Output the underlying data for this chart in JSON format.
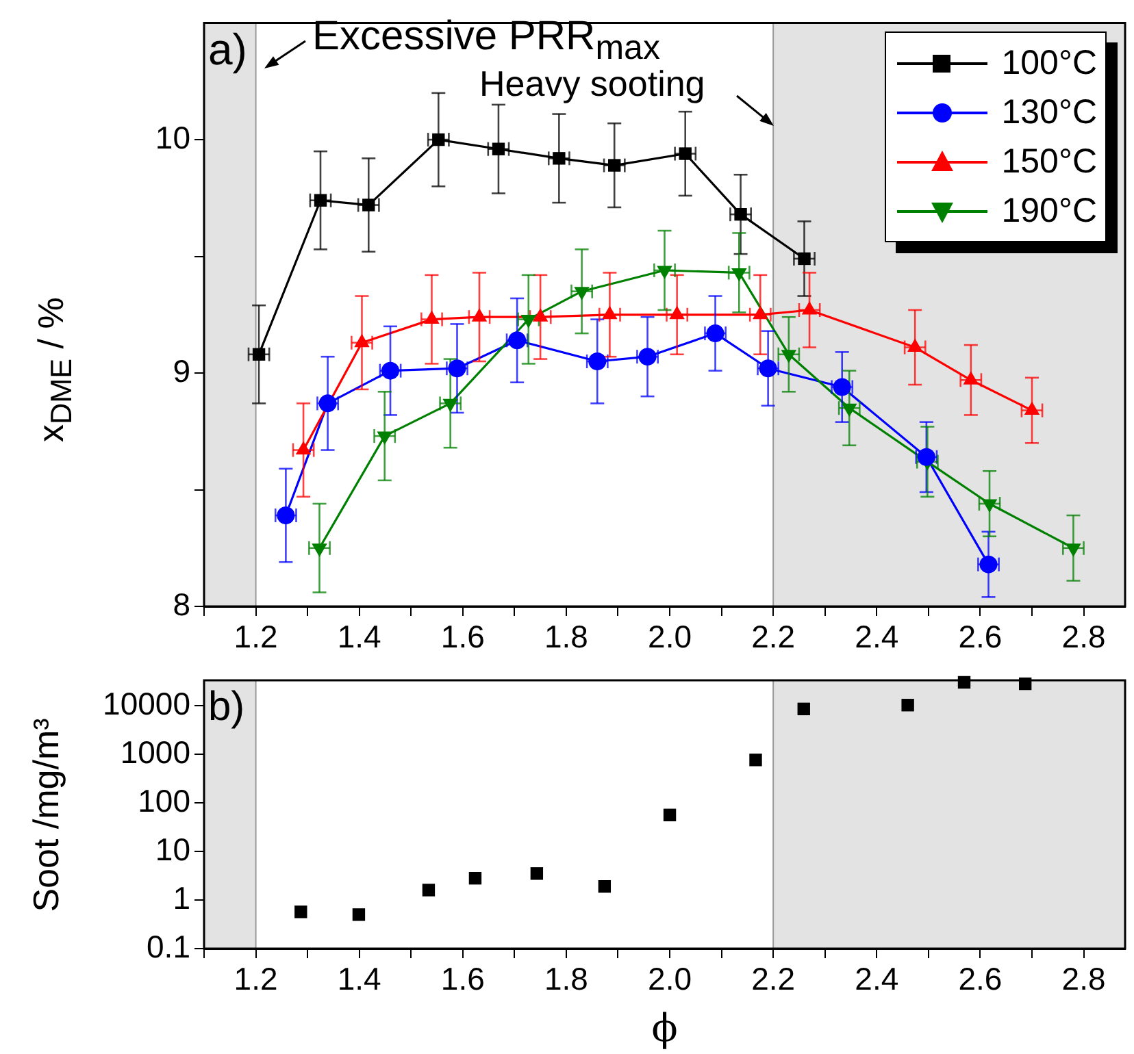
{
  "chart_data": [
    {
      "type": "line",
      "ylabel": "x$_{DME}$ / %",
      "annotations": [
        "a)",
        "Excessive PRR$_{max}$",
        "Heavy sooting"
      ],
      "xlim": [
        1.1,
        2.88
      ],
      "xticks": [
        {
          "value": 1.1,
          "label": null
        },
        {
          "value": 1.2,
          "label": "1.2"
        },
        {
          "value": 1.3,
          "label": null
        },
        {
          "value": 1.4,
          "label": "1.4"
        },
        {
          "value": 1.5,
          "label": null
        },
        {
          "value": 1.6,
          "label": "1.6"
        },
        {
          "value": 1.7,
          "label": null
        },
        {
          "value": 1.8,
          "label": "1.8"
        },
        {
          "value": 1.9,
          "label": null
        },
        {
          "value": 2.0,
          "label": "2.0"
        },
        {
          "value": 2.1,
          "label": null
        },
        {
          "value": 2.2,
          "label": "2.2"
        },
        {
          "value": 2.3,
          "label": null
        },
        {
          "value": 2.4,
          "label": "2.4"
        },
        {
          "value": 2.5,
          "label": null
        },
        {
          "value": 2.6,
          "label": "2.6"
        },
        {
          "value": 2.7,
          "label": null
        },
        {
          "value": 2.8,
          "label": "2.8"
        }
      ],
      "ylim": [
        8,
        10.5
      ],
      "yticks": [
        8,
        {
          "value": 8.5,
          "label": null
        },
        9,
        {
          "value": 9.5,
          "label": null
        },
        10
      ],
      "bands": [
        {
          "axis": "x",
          "from": 1.1,
          "to": 1.2,
          "color": "#e3e3e3"
        },
        {
          "axis": "x",
          "from": 2.2,
          "to": 2.88,
          "color": "#e3e3e3"
        }
      ],
      "legend": "top right",
      "line_style": "solid",
      "series": [
        {
          "name": "100°C",
          "color": "#000000",
          "marker": "square",
          "x": [
            1.206,
            1.325,
            1.418,
            1.553,
            1.669,
            1.786,
            1.893,
            2.03,
            2.137,
            2.26
          ],
          "values": [
            9.08,
            9.74,
            9.72,
            10.0,
            9.96,
            9.92,
            9.89,
            9.94,
            9.68,
            9.49
          ],
          "errors": [
            0.21,
            0.21,
            0.2,
            0.2,
            0.19,
            0.19,
            0.18,
            0.18,
            0.17,
            0.16
          ],
          "xerrors": [
            0.02,
            0.02,
            0.02,
            0.02,
            0.02,
            0.02,
            0.02,
            0.02,
            0.02,
            0.02
          ]
        },
        {
          "name": "130°C",
          "color": "#0000ff",
          "marker": "circle",
          "x": [
            1.258,
            1.339,
            1.46,
            1.589,
            1.705,
            1.86,
            1.957,
            2.088,
            2.19,
            2.333,
            2.496,
            2.616
          ],
          "values": [
            8.39,
            8.87,
            9.01,
            9.02,
            9.14,
            9.05,
            9.07,
            9.17,
            9.02,
            8.94,
            8.64,
            8.18
          ],
          "errors": [
            0.2,
            0.2,
            0.19,
            0.19,
            0.18,
            0.18,
            0.17,
            0.16,
            0.16,
            0.15,
            0.15,
            0.14
          ],
          "xerrors": [
            0.02,
            0.02,
            0.02,
            0.02,
            0.02,
            0.02,
            0.02,
            0.02,
            0.02,
            0.02,
            0.02,
            0.02
          ]
        },
        {
          "name": "150°C",
          "color": "#ff0000",
          "marker": "triangle",
          "x": [
            1.292,
            1.405,
            1.54,
            1.632,
            1.75,
            1.884,
            2.014,
            2.175,
            2.27,
            2.474,
            2.582,
            2.7
          ],
          "values": [
            8.67,
            9.13,
            9.23,
            9.24,
            9.24,
            9.25,
            9.25,
            9.25,
            9.27,
            9.11,
            8.97,
            8.84
          ],
          "errors": [
            0.2,
            0.2,
            0.19,
            0.19,
            0.18,
            0.18,
            0.17,
            0.17,
            0.16,
            0.16,
            0.15,
            0.14
          ],
          "xerrors": [
            0.02,
            0.02,
            0.02,
            0.02,
            0.02,
            0.02,
            0.02,
            0.02,
            0.02,
            0.02,
            0.02,
            0.02
          ]
        },
        {
          "name": "190°C",
          "color": "#008000",
          "marker": "triangle_down",
          "x": [
            1.323,
            1.449,
            1.576,
            1.727,
            1.83,
            1.99,
            2.134,
            2.23,
            2.347,
            2.498,
            2.618,
            2.78
          ],
          "values": [
            8.25,
            8.73,
            8.87,
            9.23,
            9.35,
            9.44,
            9.43,
            9.08,
            8.85,
            8.62,
            8.44,
            8.25
          ],
          "errors": [
            0.19,
            0.19,
            0.19,
            0.19,
            0.18,
            0.17,
            0.17,
            0.16,
            0.16,
            0.15,
            0.14,
            0.14
          ],
          "xerrors": [
            0.02,
            0.02,
            0.02,
            0.02,
            0.02,
            0.02,
            0.02,
            0.02,
            0.02,
            0.02,
            0.02,
            0.02
          ]
        }
      ]
    },
    {
      "type": "scatter",
      "xlabel": "ϕ",
      "ylabel": "Soot /mg/m³",
      "annotations": [
        "b)"
      ],
      "xlim": [
        1.1,
        2.88
      ],
      "xticks": [
        {
          "value": 1.1,
          "label": null
        },
        {
          "value": 1.2,
          "label": "1.2"
        },
        {
          "value": 1.3,
          "label": null
        },
        {
          "value": 1.4,
          "label": "1.4"
        },
        {
          "value": 1.5,
          "label": null
        },
        {
          "value": 1.6,
          "label": "1.6"
        },
        {
          "value": 1.7,
          "label": null
        },
        {
          "value": 1.8,
          "label": "1.8"
        },
        {
          "value": 1.9,
          "label": null
        },
        {
          "value": 2.0,
          "label": "2.0"
        },
        {
          "value": 2.1,
          "label": null
        },
        {
          "value": 2.2,
          "label": "2.2"
        },
        {
          "value": 2.3,
          "label": null
        },
        {
          "value": 2.4,
          "label": "2.4"
        },
        {
          "value": 2.5,
          "label": null
        },
        {
          "value": 2.6,
          "label": "2.6"
        },
        {
          "value": 2.7,
          "label": null
        },
        {
          "value": 2.8,
          "label": "2.8"
        }
      ],
      "log": "y",
      "ylim": [
        0.1,
        33000
      ],
      "yticks": [
        0.1,
        1,
        10,
        100,
        1000,
        10000
      ],
      "bands": [
        {
          "axis": "x",
          "from": 1.1,
          "to": 1.2,
          "color": "#e3e3e3"
        },
        {
          "axis": "x",
          "from": 2.2,
          "to": 2.88,
          "color": "#e3e3e3"
        }
      ],
      "series": [
        {
          "color": "#000000",
          "marker": "square",
          "x": [
            1.287,
            1.399,
            1.534,
            1.624,
            1.743,
            1.874,
            2.0,
            2.166,
            2.259,
            2.46,
            2.569,
            2.687
          ],
          "values": [
            0.57,
            0.5,
            1.6,
            2.8,
            3.5,
            1.9,
            56,
            760,
            8500,
            10200,
            30000,
            28000
          ]
        }
      ]
    }
  ]
}
